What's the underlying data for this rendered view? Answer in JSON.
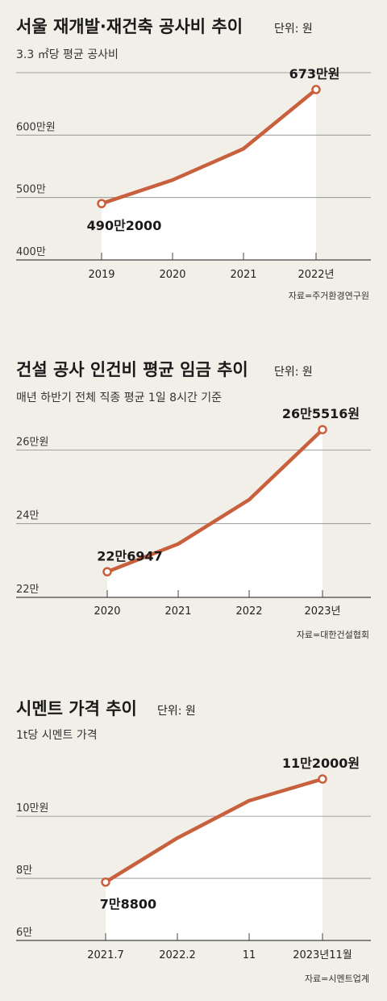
{
  "colors": {
    "background": "#f2efe8",
    "line": "#c8603d",
    "area": "#ffffff",
    "grid": "#555555"
  },
  "chart_data": [
    {
      "type": "line",
      "title": "서울 재개발·재건축 공사비 추이",
      "unit": "단위: 원",
      "subtitle": "3.3 ㎡당 평균 공사비",
      "categories": [
        "2019",
        "2020",
        "2021",
        "2022년"
      ],
      "values": [
        4902000,
        5280000,
        5780000,
        6730000
      ],
      "ylim": [
        4000000,
        7000000
      ],
      "y_ticks": [
        {
          "value": 4000000,
          "label": "400만"
        },
        {
          "value": 5000000,
          "label": "500만"
        },
        {
          "value": 6000000,
          "label": "600만원"
        },
        {
          "value": 7000000,
          "label": ""
        }
      ],
      "annotations": [
        {
          "index": 0,
          "label": "490만2000",
          "position": "below"
        },
        {
          "index": 3,
          "label": "673만원",
          "position": "above"
        }
      ],
      "source": "자료=주거환경연구원"
    },
    {
      "type": "line",
      "title": "건설 공사 인건비 평균 임금 추이",
      "unit": "단위: 원",
      "subtitle": "매년 하반기 전체 직종 평균 1일 8시간 기준",
      "categories": [
        "2020",
        "2021",
        "2022",
        "2023년"
      ],
      "values": [
        226947,
        234500,
        246500,
        265516
      ],
      "ylim": [
        220000,
        266000
      ],
      "y_ticks": [
        {
          "value": 220000,
          "label": "22만"
        },
        {
          "value": 240000,
          "label": "24만"
        },
        {
          "value": 260000,
          "label": "26만원"
        }
      ],
      "annotations": [
        {
          "index": 0,
          "label": "22만6947",
          "position": "above"
        },
        {
          "index": 3,
          "label": "26만5516원",
          "position": "above"
        }
      ],
      "source": "자료=대한건설협회"
    },
    {
      "type": "line",
      "title": "시멘트 가격 추이",
      "unit": "단위: 원",
      "subtitle": "1t당 시멘트 가격",
      "categories": [
        "2021.7",
        "2022.2",
        "11",
        "2023년11월"
      ],
      "values": [
        78800,
        93000,
        105000,
        112000
      ],
      "ylim": [
        60000,
        112000
      ],
      "y_ticks": [
        {
          "value": 60000,
          "label": "6만"
        },
        {
          "value": 80000,
          "label": "8만"
        },
        {
          "value": 100000,
          "label": "10만원"
        }
      ],
      "annotations": [
        {
          "index": 0,
          "label": "7만8800",
          "position": "below"
        },
        {
          "index": 3,
          "label": "11만2000원",
          "position": "above"
        }
      ],
      "source": "자료=시멘트업계"
    }
  ]
}
